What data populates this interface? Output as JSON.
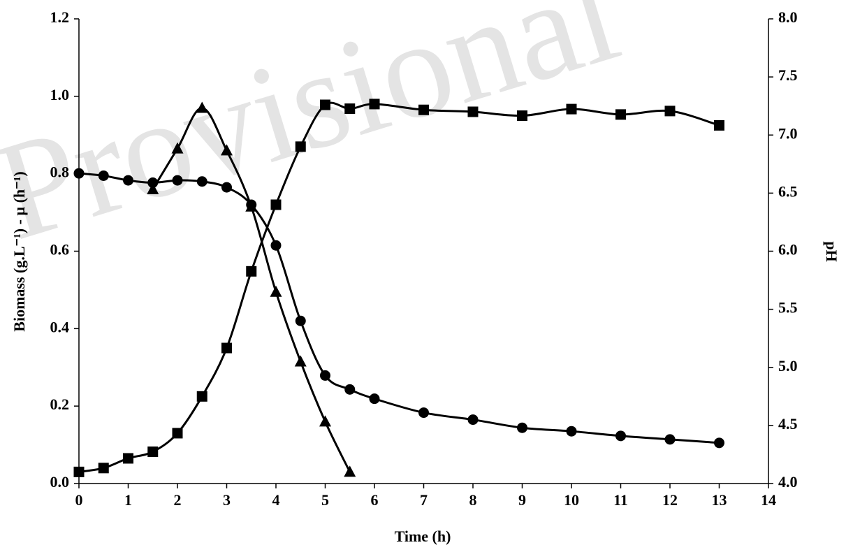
{
  "chart_data": {
    "type": "line",
    "watermark": "Provisional",
    "xlabel": "Time (h)",
    "ylabel": "Biomass (g.L⁻¹)  - µ (h⁻¹)",
    "y2label": "pH",
    "xlim": [
      0,
      14
    ],
    "xticks": [
      0,
      1,
      2,
      3,
      4,
      5,
      6,
      7,
      8,
      9,
      10,
      11,
      12,
      13,
      14
    ],
    "ylim": [
      0,
      1.2
    ],
    "yticks": [
      {
        "value": 0,
        "label": "0.0"
      },
      0.2,
      0.4,
      0.6,
      0.8,
      {
        "value": 1,
        "label": "1.0"
      },
      1.2
    ],
    "y2lim": [
      4,
      8
    ],
    "y2ticks": [
      {
        "value": 4,
        "label": "4.0"
      },
      4.5,
      {
        "value": 5,
        "label": "5.0"
      },
      5.5,
      {
        "value": 6,
        "label": "6.0"
      },
      6.5,
      {
        "value": 7,
        "label": "7.0"
      },
      7.5,
      {
        "value": 8,
        "label": "8.0"
      }
    ],
    "grid": false,
    "series": [
      {
        "marker": "square",
        "color": "#000000",
        "axis": "y",
        "x": [
          0,
          0.5,
          1,
          1.5,
          2,
          2.5,
          3,
          3.5,
          4,
          4.5,
          5,
          5.5,
          6,
          7,
          8,
          9,
          10,
          11,
          12,
          13
        ],
        "values": [
          0.03,
          0.04,
          0.065,
          0.082,
          0.13,
          0.225,
          0.35,
          0.548,
          0.72,
          0.87,
          0.978,
          0.968,
          0.98,
          0.965,
          0.96,
          0.95,
          0.967,
          0.953,
          0.962,
          0.925
        ]
      },
      {
        "marker": "triangle",
        "color": "#000000",
        "axis": "y",
        "x": [
          1.5,
          2,
          2.5,
          3,
          3.5,
          4,
          4.5,
          5,
          5.5
        ],
        "values": [
          0.76,
          0.865,
          0.97,
          0.86,
          0.715,
          0.495,
          0.315,
          0.16,
          0.03
        ]
      },
      {
        "marker": "circle",
        "color": "#000000",
        "axis": "y2",
        "x": [
          0,
          0.5,
          1,
          1.5,
          2,
          2.5,
          3,
          3.5,
          4,
          4.5,
          5,
          5.5,
          6,
          7,
          8,
          9,
          10,
          11,
          12,
          13
        ],
        "values": [
          6.67,
          6.65,
          6.61,
          6.59,
          6.61,
          6.6,
          6.55,
          6.4,
          6.05,
          5.4,
          4.93,
          4.81,
          4.73,
          4.61,
          4.55,
          4.48,
          4.45,
          4.41,
          4.38,
          4.35
        ]
      }
    ]
  }
}
